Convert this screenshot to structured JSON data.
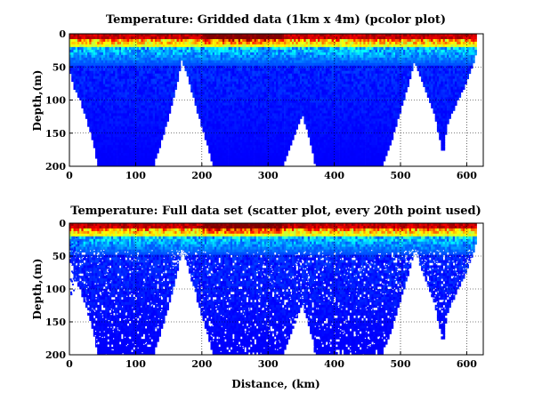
{
  "chart_data": [
    {
      "type": "heatmap",
      "title": "Temperature: Gridded data (1km x 4m) (pcolor plot)",
      "xlabel": "",
      "ylabel": "Depth,(m)",
      "xlim": [
        0,
        625
      ],
      "ylim": [
        200,
        0
      ],
      "y_reversed": true,
      "grid": true,
      "xticks": [
        0,
        100,
        200,
        300,
        400,
        500,
        600
      ],
      "yticks": [
        0,
        50,
        100,
        150,
        200
      ],
      "colormap": "jet",
      "colors": {
        "cold": "#1a3fe0",
        "warm": "#ffd000",
        "hot": "#c01010"
      },
      "data_extent_km_depth": [
        [
          0,
          200
        ],
        [
          45,
          200
        ],
        [
          125,
          190
        ],
        [
          170,
          40
        ],
        [
          215,
          200
        ],
        [
          320,
          200
        ],
        [
          370,
          200
        ],
        [
          470,
          200
        ],
        [
          520,
          40
        ],
        [
          560,
          180
        ],
        [
          600,
          60
        ]
      ]
    },
    {
      "type": "scatter",
      "title": "Temperature: Full data set (scatter plot, every 20th point used)",
      "xlabel": "Distance, (km)",
      "ylabel": "Depth,(m)",
      "xlim": [
        0,
        625
      ],
      "ylim": [
        200,
        0
      ],
      "y_reversed": true,
      "grid": true,
      "xticks": [
        0,
        100,
        200,
        300,
        400,
        500,
        600
      ],
      "yticks": [
        0,
        50,
        100,
        150,
        200
      ],
      "colormap": "jet",
      "colors": {
        "cold": "#1a3fe0",
        "warm": "#ffd000",
        "hot": "#c01010"
      }
    }
  ]
}
